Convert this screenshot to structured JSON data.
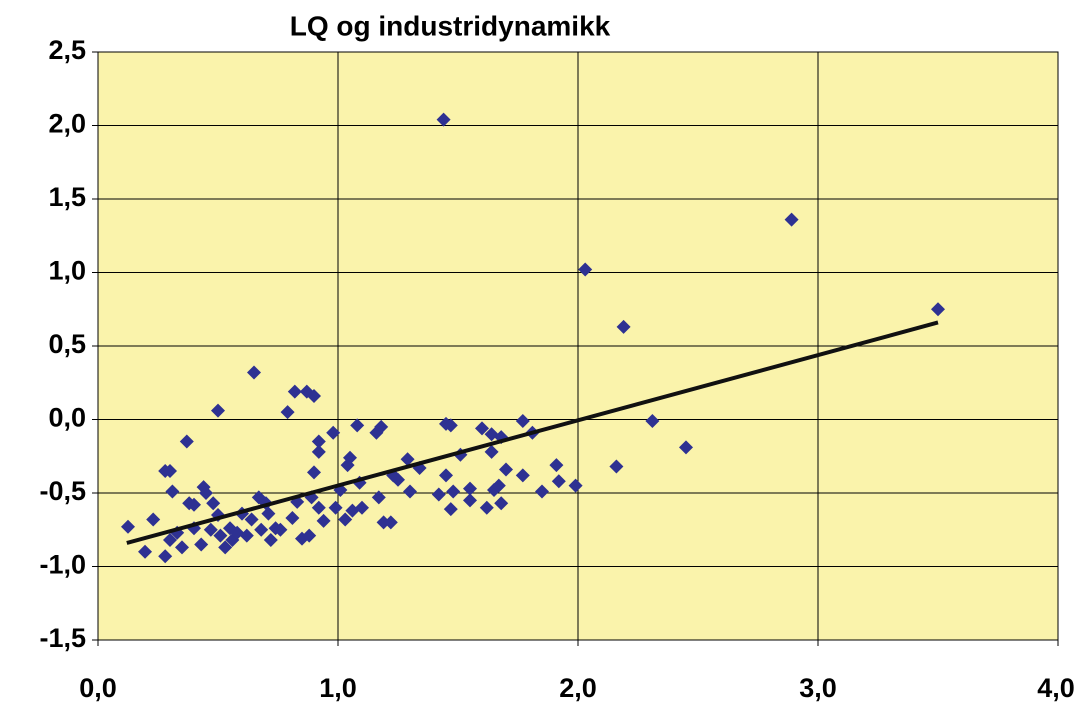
{
  "chart_data": {
    "type": "scatter",
    "title": "LQ og industridynamikk",
    "color": "#2e3192",
    "background": "#faf3ab",
    "grid": true,
    "xlim": [
      0,
      4
    ],
    "ylim": [
      -1.5,
      2.5
    ],
    "xticks": [
      {
        "value": 0,
        "label": "0,0"
      },
      {
        "value": 1,
        "label": "1,0"
      },
      {
        "value": 2,
        "label": "2,0"
      },
      {
        "value": 3,
        "label": "3,0"
      },
      {
        "value": 4,
        "label": "4,0"
      }
    ],
    "yticks": [
      {
        "value": -1.5,
        "label": "-1,5"
      },
      {
        "value": -1,
        "label": "-1,0"
      },
      {
        "value": -0.5,
        "label": "-0,5"
      },
      {
        "value": 0,
        "label": "0,0"
      },
      {
        "value": 0.5,
        "label": "0,5"
      },
      {
        "value": 1,
        "label": "1,0"
      },
      {
        "value": 1.5,
        "label": "1,5"
      },
      {
        "value": 2,
        "label": "2,0"
      },
      {
        "value": 2.5,
        "label": "2,5"
      }
    ],
    "x": [
      0.125,
      0.196,
      0.23,
      0.28,
      0.3,
      0.31,
      0.28,
      0.3,
      0.33,
      0.35,
      0.37,
      0.38,
      0.4,
      0.4,
      0.43,
      0.44,
      0.45,
      0.47,
      0.48,
      0.5,
      0.5,
      0.51,
      0.53,
      0.55,
      0.56,
      0.58,
      0.6,
      0.62,
      0.64,
      0.65,
      0.67,
      0.68,
      0.7,
      0.71,
      0.72,
      0.74,
      0.76,
      0.79,
      0.81,
      0.82,
      0.83,
      0.85,
      0.87,
      0.88,
      0.89,
      0.9,
      0.9,
      0.92,
      0.92,
      0.92,
      0.94,
      0.98,
      0.99,
      1.01,
      1.03,
      1.04,
      1.05,
      1.06,
      1.08,
      1.09,
      1.1,
      1.16,
      1.17,
      1.18,
      1.19,
      1.22,
      1.23,
      1.25,
      1.29,
      1.3,
      1.34,
      1.42,
      1.44,
      1.45,
      1.47,
      1.45,
      1.47,
      1.48,
      1.51,
      1.55,
      1.55,
      1.6,
      1.62,
      1.64,
      1.64,
      1.65,
      1.67,
      1.68,
      1.68,
      1.7,
      1.77,
      1.77,
      1.81,
      1.85,
      1.91,
      1.92,
      1.99,
      2.03,
      2.16,
      2.19,
      2.31,
      2.45,
      2.89,
      3.5
    ],
    "values": [
      -0.73,
      -0.9,
      -0.68,
      -0.35,
      -0.35,
      -0.49,
      -0.93,
      -0.82,
      -0.77,
      -0.87,
      -0.15,
      -0.57,
      -0.58,
      -0.74,
      -0.85,
      -0.46,
      -0.5,
      -0.75,
      -0.57,
      0.06,
      -0.65,
      -0.79,
      -0.87,
      -0.74,
      -0.82,
      -0.77,
      -0.64,
      -0.79,
      -0.68,
      0.32,
      -0.53,
      -0.75,
      -0.57,
      -0.64,
      -0.82,
      -0.74,
      -0.75,
      0.05,
      -0.67,
      0.19,
      -0.56,
      -0.81,
      0.19,
      -0.79,
      -0.53,
      -0.36,
      0.16,
      -0.15,
      -0.22,
      -0.6,
      -0.69,
      -0.09,
      -0.6,
      -0.48,
      -0.68,
      -0.31,
      -0.26,
      -0.62,
      -0.04,
      -0.43,
      -0.6,
      -0.09,
      -0.53,
      -0.05,
      -0.7,
      -0.7,
      -0.38,
      -0.41,
      -0.27,
      -0.49,
      -0.33,
      -0.51,
      2.04,
      -0.03,
      -0.04,
      -0.38,
      -0.61,
      -0.49,
      -0.24,
      -0.47,
      -0.55,
      -0.06,
      -0.6,
      -0.22,
      -0.1,
      -0.48,
      -0.45,
      -0.12,
      -0.57,
      -0.34,
      -0.01,
      -0.38,
      -0.09,
      -0.49,
      -0.31,
      -0.42,
      -0.45,
      1.02,
      -0.32,
      0.63,
      -0.01,
      -0.19,
      1.36,
      0.75
    ],
    "trendline": {
      "color": "#111111",
      "x": [
        0.12,
        3.5
      ],
      "values": [
        -0.84,
        0.66
      ]
    }
  }
}
